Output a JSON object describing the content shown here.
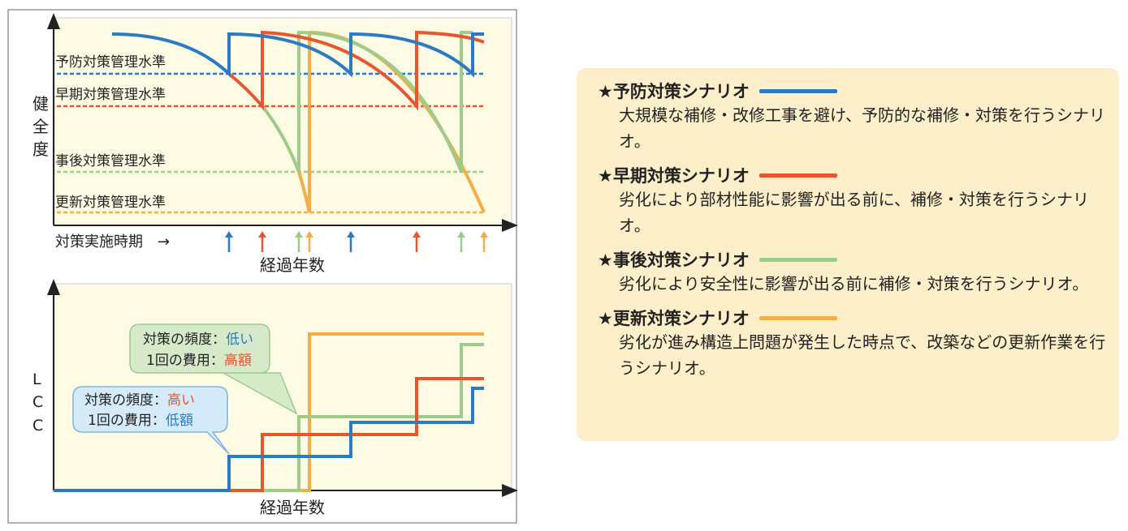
{
  "colors": {
    "preventive": "#2a7ac6",
    "early": "#e8552f",
    "post": "#9ccb8a",
    "renewal": "#f5ad45",
    "plot_bg": "#fdfbe4",
    "legend_bg": "#fdefc9"
  },
  "health_chart": {
    "ylabel": [
      "健",
      "全",
      "度"
    ],
    "levels": [
      "予防対策管理水準",
      "早期対策管理水準",
      "事後対策管理水準",
      "更新対策管理水準"
    ],
    "timing_label": "対策実施時期　→",
    "xlabel": "経過年数"
  },
  "lcc_chart": {
    "ylabel": [
      "L",
      "C",
      "C"
    ],
    "xlabel": "経過年数",
    "callout_low_freq": {
      "freq_label": "対策の頻度：",
      "freq_value": "低い",
      "cost_label": "1回の費用：",
      "cost_value": "高額"
    },
    "callout_high_freq": {
      "freq_label": "対策の頻度：",
      "freq_value": "高い",
      "cost_label": "1回の費用：",
      "cost_value": "低額"
    }
  },
  "scenarios": [
    {
      "title": "★予防対策シナリオ",
      "desc": "大規模な補修・改修工事を避け、予防的な補修・対策を行うシナリオ。",
      "color": "#2a7ac6"
    },
    {
      "title": "★早期対策シナリオ",
      "desc": "劣化により部材性能に影響が出る前に、補修・対策を行うシナリオ。",
      "color": "#e8552f"
    },
    {
      "title": "★事後対策シナリオ",
      "desc": "劣化により安全性に影響が出る前に補修・対策を行うシナリオ。",
      "color": "#9ccb8a"
    },
    {
      "title": "★更新対策シナリオ",
      "desc": "劣化が進み構造上問題が発生した時点で、改築などの更新作業を行うシナリオ。",
      "color": "#f5ad45"
    }
  ]
}
